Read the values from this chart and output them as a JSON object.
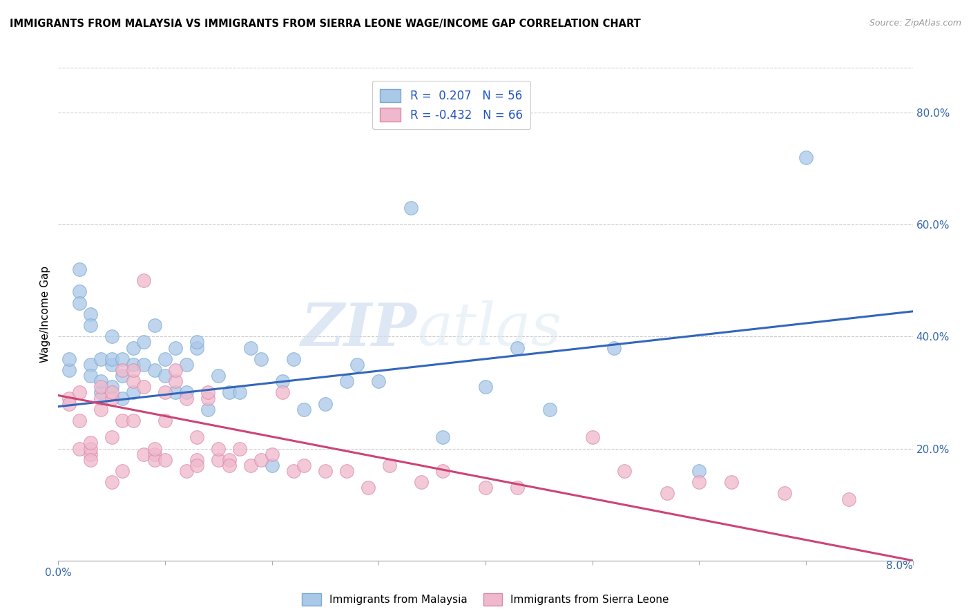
{
  "title": "IMMIGRANTS FROM MALAYSIA VS IMMIGRANTS FROM SIERRA LEONE WAGE/INCOME GAP CORRELATION CHART",
  "source": "Source: ZipAtlas.com",
  "ylabel": "Wage/Income Gap",
  "right_yticks": [
    0.2,
    0.4,
    0.6,
    0.8
  ],
  "right_yticklabels": [
    "20.0%",
    "40.0%",
    "60.0%",
    "80.0%"
  ],
  "bottom_right_label": "8.0%",
  "xmin": 0.0,
  "xmax": 0.08,
  "ymin": 0.0,
  "ymax": 0.88,
  "malaysia_color": "#aac8e8",
  "malaysia_edge": "#7aaad0",
  "sierraleone_color": "#f0b8cc",
  "sierraleone_edge": "#d88aaa",
  "malaysia_line_color": "#3366bb",
  "sierraleone_line_color": "#cc4477",
  "R_malaysia": 0.207,
  "N_malaysia": 56,
  "R_sierraleone": -0.432,
  "N_sierraleone": 66,
  "watermark": "ZIPatlas",
  "legend_label_malaysia": "Immigrants from Malaysia",
  "legend_label_sierraleone": "Immigrants from Sierra Leone",
  "malaysia_x": [
    0.001,
    0.001,
    0.002,
    0.002,
    0.002,
    0.003,
    0.003,
    0.003,
    0.003,
    0.004,
    0.004,
    0.004,
    0.005,
    0.005,
    0.005,
    0.005,
    0.006,
    0.006,
    0.006,
    0.007,
    0.007,
    0.007,
    0.008,
    0.008,
    0.009,
    0.009,
    0.01,
    0.01,
    0.011,
    0.011,
    0.012,
    0.012,
    0.013,
    0.013,
    0.014,
    0.015,
    0.016,
    0.017,
    0.018,
    0.019,
    0.02,
    0.021,
    0.022,
    0.023,
    0.025,
    0.027,
    0.028,
    0.03,
    0.033,
    0.036,
    0.04,
    0.043,
    0.046,
    0.052,
    0.06,
    0.07
  ],
  "malaysia_y": [
    0.34,
    0.36,
    0.52,
    0.48,
    0.46,
    0.44,
    0.42,
    0.35,
    0.33,
    0.3,
    0.32,
    0.36,
    0.31,
    0.35,
    0.36,
    0.4,
    0.29,
    0.33,
    0.36,
    0.3,
    0.35,
    0.38,
    0.35,
    0.39,
    0.34,
    0.42,
    0.36,
    0.33,
    0.3,
    0.38,
    0.35,
    0.3,
    0.38,
    0.39,
    0.27,
    0.33,
    0.3,
    0.3,
    0.38,
    0.36,
    0.17,
    0.32,
    0.36,
    0.27,
    0.28,
    0.32,
    0.35,
    0.32,
    0.63,
    0.22,
    0.31,
    0.38,
    0.27,
    0.38,
    0.16,
    0.72
  ],
  "sierraleone_x": [
    0.001,
    0.001,
    0.002,
    0.002,
    0.002,
    0.003,
    0.003,
    0.003,
    0.003,
    0.004,
    0.004,
    0.004,
    0.005,
    0.005,
    0.005,
    0.005,
    0.006,
    0.006,
    0.006,
    0.007,
    0.007,
    0.007,
    0.008,
    0.008,
    0.008,
    0.009,
    0.009,
    0.009,
    0.01,
    0.01,
    0.01,
    0.011,
    0.011,
    0.012,
    0.012,
    0.013,
    0.013,
    0.013,
    0.014,
    0.014,
    0.015,
    0.015,
    0.016,
    0.016,
    0.017,
    0.018,
    0.019,
    0.02,
    0.021,
    0.022,
    0.023,
    0.025,
    0.027,
    0.029,
    0.031,
    0.034,
    0.036,
    0.04,
    0.043,
    0.05,
    0.053,
    0.057,
    0.06,
    0.063,
    0.068,
    0.074
  ],
  "sierraleone_y": [
    0.29,
    0.28,
    0.25,
    0.3,
    0.2,
    0.19,
    0.2,
    0.18,
    0.21,
    0.29,
    0.27,
    0.31,
    0.29,
    0.3,
    0.14,
    0.22,
    0.34,
    0.16,
    0.25,
    0.32,
    0.34,
    0.25,
    0.31,
    0.19,
    0.5,
    0.19,
    0.18,
    0.2,
    0.18,
    0.25,
    0.3,
    0.32,
    0.34,
    0.29,
    0.16,
    0.18,
    0.22,
    0.17,
    0.29,
    0.3,
    0.18,
    0.2,
    0.18,
    0.17,
    0.2,
    0.17,
    0.18,
    0.19,
    0.3,
    0.16,
    0.17,
    0.16,
    0.16,
    0.13,
    0.17,
    0.14,
    0.16,
    0.13,
    0.13,
    0.22,
    0.16,
    0.12,
    0.14,
    0.14,
    0.12,
    0.11
  ],
  "trend_malaysia_x0": 0.0,
  "trend_malaysia_y0": 0.275,
  "trend_malaysia_x1": 0.08,
  "trend_malaysia_y1": 0.445,
  "trend_sierraleone_x0": 0.0,
  "trend_sierraleone_y0": 0.295,
  "trend_sierraleone_x1": 0.08,
  "trend_sierraleone_y1": 0.0
}
